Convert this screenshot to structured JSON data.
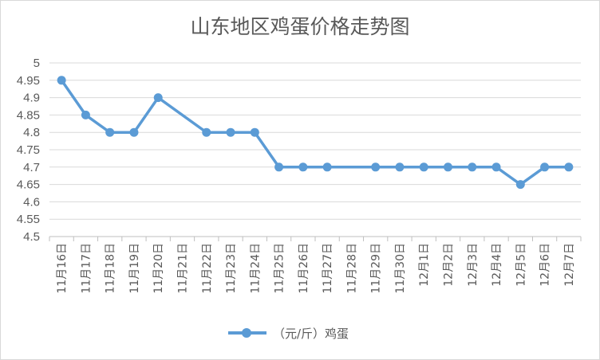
{
  "chart_data": {
    "type": "line",
    "title": "山东地区鸡蛋价格走势图",
    "categories": [
      "11月16日",
      "11月17日",
      "11月18日",
      "11月19日",
      "11月20日",
      "11月21日",
      "11月22日",
      "11月23日",
      "11月24日",
      "11月25日",
      "11月26日",
      "11月27日",
      "11月28日",
      "11月29日",
      "11月30日",
      "12月1日",
      "12月2日",
      "12月3日",
      "12月4日",
      "12月5日",
      "12月6日",
      "12月7日"
    ],
    "yticks": [
      "4.5",
      "4.55",
      "4.6",
      "4.65",
      "4.7",
      "4.75",
      "4.8",
      "4.85",
      "4.9",
      "4.95",
      "5"
    ],
    "ylim": [
      4.5,
      5
    ],
    "series": [
      {
        "name": "（元/斤）鸡蛋",
        "color": "#5b9bd5",
        "values": [
          4.95,
          4.85,
          4.8,
          4.8,
          4.9,
          null,
          4.8,
          4.8,
          4.8,
          4.7,
          4.7,
          4.7,
          null,
          4.7,
          4.7,
          4.7,
          4.7,
          4.7,
          4.7,
          4.65,
          4.7,
          4.7
        ]
      }
    ],
    "grid": true,
    "legend_position": "bottom"
  }
}
